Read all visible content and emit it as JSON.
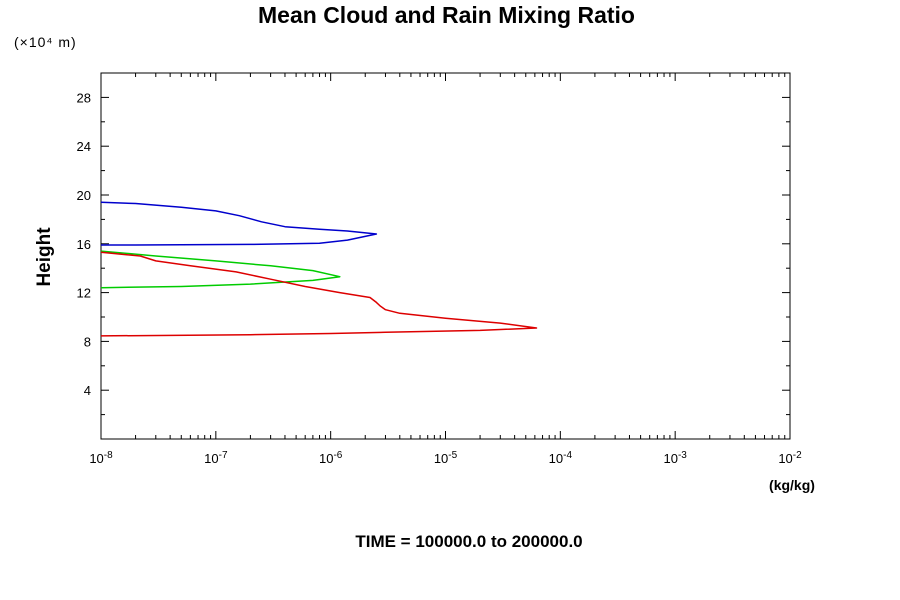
{
  "title": "Mean Cloud and Rain Mixing Ratio",
  "y_scale_note": "(×10⁴ m)",
  "footer": "TIME = 100000.0 to 200000.0",
  "chart_data": {
    "type": "line",
    "title": "Mean Cloud and Rain Mixing Ratio",
    "xlabel": "(kg/kg)",
    "ylabel": "Height",
    "x_scale": "log",
    "xlim": [
      1e-08,
      0.01
    ],
    "ylim": [
      0,
      30
    ],
    "x_ticks": [
      {
        "value": 1e-08,
        "label_base": "10",
        "label_exp": "-8"
      },
      {
        "value": 1e-07,
        "label_base": "10",
        "label_exp": "-7"
      },
      {
        "value": 1e-06,
        "label_base": "10",
        "label_exp": "-6"
      },
      {
        "value": 1e-05,
        "label_base": "10",
        "label_exp": "-5"
      },
      {
        "value": 0.0001,
        "label_base": "10",
        "label_exp": "-4"
      },
      {
        "value": 0.001,
        "label_base": "10",
        "label_exp": "-3"
      },
      {
        "value": 0.01,
        "label_base": "10",
        "label_exp": "-2"
      }
    ],
    "y_ticks": [
      4,
      8,
      12,
      16,
      20,
      24,
      28
    ],
    "grid": false,
    "series": [
      {
        "color": "#0000cc",
        "points": [
          [
            1e-08,
            19.4
          ],
          [
            2e-08,
            19.3
          ],
          [
            5e-08,
            19.0
          ],
          [
            1e-07,
            18.7
          ],
          [
            1.6e-07,
            18.3
          ],
          [
            2.5e-07,
            17.8
          ],
          [
            4e-07,
            17.4
          ],
          [
            8e-07,
            17.2
          ],
          [
            1.4e-06,
            17.05
          ],
          [
            2.5e-06,
            16.8
          ],
          [
            1.4e-06,
            16.3
          ],
          [
            8e-07,
            16.05
          ],
          [
            2e-07,
            15.95
          ],
          [
            2e-08,
            15.9
          ],
          [
            1e-08,
            15.9
          ]
        ]
      },
      {
        "color": "#00cc00",
        "points": [
          [
            1e-08,
            15.4
          ],
          [
            3e-08,
            15.0
          ],
          [
            1e-07,
            14.6
          ],
          [
            3e-07,
            14.2
          ],
          [
            7e-07,
            13.8
          ],
          [
            1.2e-06,
            13.3
          ],
          [
            7e-07,
            13.0
          ],
          [
            2e-07,
            12.7
          ],
          [
            5e-08,
            12.5
          ],
          [
            1e-08,
            12.4
          ]
        ]
      },
      {
        "color": "#dd0000",
        "points": [
          [
            1e-08,
            15.3
          ],
          [
            2.2e-08,
            15.0
          ],
          [
            3e-08,
            14.6
          ],
          [
            6e-08,
            14.2
          ],
          [
            1.5e-07,
            13.7
          ],
          [
            3e-07,
            13.1
          ],
          [
            6e-07,
            12.5
          ],
          [
            1.2e-06,
            12.0
          ],
          [
            2.2e-06,
            11.6
          ],
          [
            2.5e-06,
            11.2
          ],
          [
            2.7e-06,
            10.9
          ],
          [
            3e-06,
            10.6
          ],
          [
            4e-06,
            10.3
          ],
          [
            1e-05,
            9.9
          ],
          [
            3e-05,
            9.5
          ],
          [
            6.2e-05,
            9.1
          ],
          [
            2e-05,
            8.9
          ],
          [
            3e-06,
            8.75
          ],
          [
            1e-06,
            8.65
          ],
          [
            2e-07,
            8.55
          ],
          [
            1e-08,
            8.45
          ]
        ]
      }
    ]
  }
}
